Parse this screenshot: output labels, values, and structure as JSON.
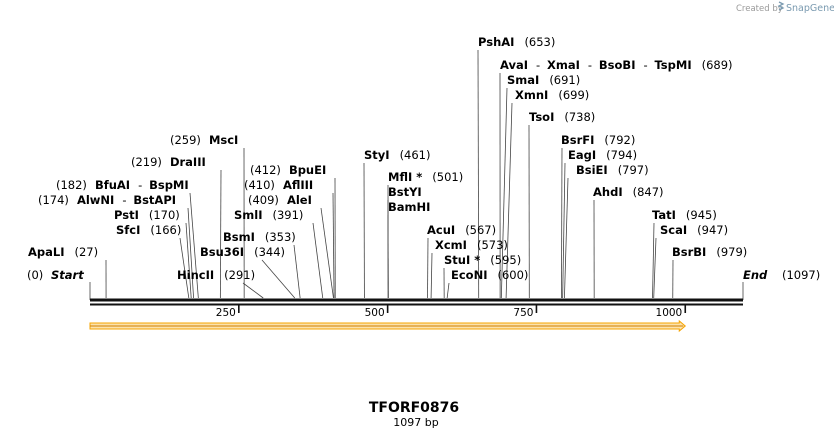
{
  "credit": {
    "prefix": "Created by",
    "brand": "SnapGene"
  },
  "sequence": {
    "name": "TFORF0876",
    "length_label": "1097 bp",
    "length": 1097
  },
  "endpoints": {
    "start": {
      "label": "Start",
      "pos": "(0)"
    },
    "end": {
      "label": "End",
      "pos": "(1097)"
    }
  },
  "ruler": {
    "ticks": [
      {
        "value": 250,
        "label": "250"
      },
      {
        "value": 500,
        "label": "500"
      },
      {
        "value": 750,
        "label": "750"
      },
      {
        "value": 1000,
        "label": "1000"
      }
    ]
  },
  "feature": {
    "start": 0,
    "end": 1000,
    "color": "#f7a400"
  },
  "sites": [
    {
      "names": [
        "ApaLI"
      ],
      "pos": "(27)",
      "site": 27
    },
    {
      "names": [
        "SfcI"
      ],
      "pos": "(166)",
      "site": 166
    },
    {
      "names": [
        "PstI"
      ],
      "pos": "(170)",
      "site": 170
    },
    {
      "names": [
        "AlwNI",
        "BstAPI"
      ],
      "pos": "(174)",
      "site": 174
    },
    {
      "names": [
        "BfuAI",
        "BspMI"
      ],
      "pos": "(182)",
      "site": 182
    },
    {
      "names": [
        "DraIII"
      ],
      "pos": "(219)",
      "site": 219
    },
    {
      "names": [
        "MscI"
      ],
      "pos": "(259)",
      "site": 259
    },
    {
      "names": [
        "HincII"
      ],
      "pos": "(291)",
      "site": 291
    },
    {
      "names": [
        "Bsu36I"
      ],
      "pos": "(344)",
      "site": 344
    },
    {
      "names": [
        "BsmI"
      ],
      "pos": "(353)",
      "site": 353
    },
    {
      "names": [
        "SmlI"
      ],
      "pos": "(391)",
      "site": 391
    },
    {
      "names": [
        "AleI"
      ],
      "pos": "(409)",
      "site": 409
    },
    {
      "names": [
        "AflIII"
      ],
      "pos": "(410)",
      "site": 410
    },
    {
      "names": [
        "BpuEI"
      ],
      "pos": "(412)",
      "site": 412
    },
    {
      "names": [
        "StyI"
      ],
      "pos": "(461)",
      "site": 461
    },
    {
      "names": [
        "MflI *"
      ],
      "pos": "(501)",
      "site": 501
    },
    {
      "names": [
        "BstYI"
      ],
      "pos": "",
      "site": 501
    },
    {
      "names": [
        "BamHI"
      ],
      "pos": "",
      "site": 501
    },
    {
      "names": [
        "AcuI"
      ],
      "pos": "(567)",
      "site": 567
    },
    {
      "names": [
        "XcmI"
      ],
      "pos": "(573)",
      "site": 573
    },
    {
      "names": [
        "StuI *"
      ],
      "pos": "(595)",
      "site": 595
    },
    {
      "names": [
        "EcoNI"
      ],
      "pos": "(600)",
      "site": 600
    },
    {
      "names": [
        "PshAI"
      ],
      "pos": "(653)",
      "site": 653
    },
    {
      "names": [
        "AvaI",
        "XmaI",
        "BsoBI",
        "TspMI"
      ],
      "pos": "(689)",
      "site": 689
    },
    {
      "names": [
        "SmaI"
      ],
      "pos": "(691)",
      "site": 691
    },
    {
      "names": [
        "XmnI"
      ],
      "pos": "(699)",
      "site": 699
    },
    {
      "names": [
        "TsoI"
      ],
      "pos": "(738)",
      "site": 738
    },
    {
      "names": [
        "BsrFI"
      ],
      "pos": "(792)",
      "site": 792
    },
    {
      "names": [
        "EagI"
      ],
      "pos": "(794)",
      "site": 794
    },
    {
      "names": [
        "BsiEI"
      ],
      "pos": "(797)",
      "site": 797
    },
    {
      "names": [
        "AhdI"
      ],
      "pos": "(847)",
      "site": 847
    },
    {
      "names": [
        "TatI"
      ],
      "pos": "(945)",
      "site": 945
    },
    {
      "names": [
        "ScaI"
      ],
      "pos": "(947)",
      "site": 947
    },
    {
      "names": [
        "BsrBI"
      ],
      "pos": "(979)",
      "site": 979
    }
  ]
}
